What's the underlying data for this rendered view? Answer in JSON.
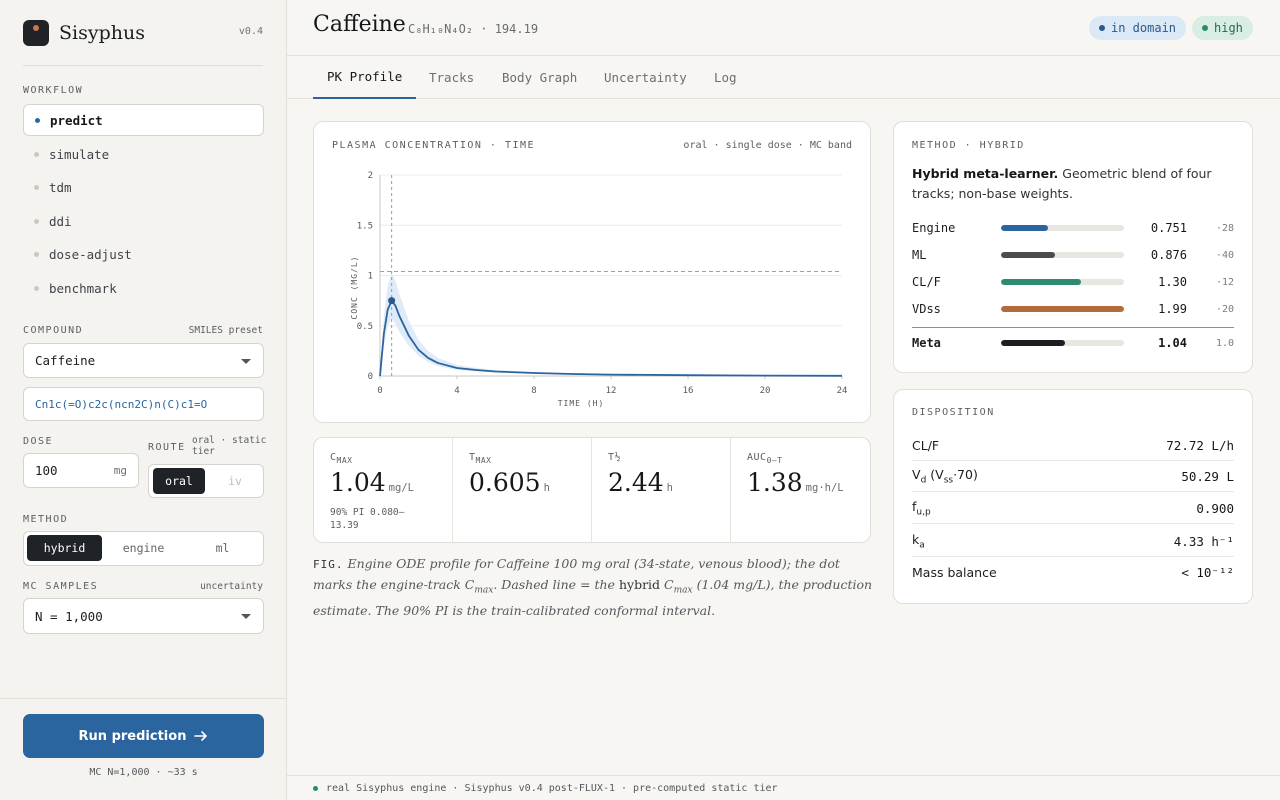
{
  "app": {
    "name": "Sisyphus",
    "version": "v0.4"
  },
  "sidebar": {
    "workflow_label": "WORKFLOW",
    "workflow_items": [
      {
        "label": "predict",
        "active": true
      },
      {
        "label": "simulate",
        "active": false
      },
      {
        "label": "tdm",
        "active": false
      },
      {
        "label": "ddi",
        "active": false
      },
      {
        "label": "dose-adjust",
        "active": false
      },
      {
        "label": "benchmark",
        "active": false
      }
    ],
    "compound_label": "COMPOUND",
    "compound_hint": "SMILES preset",
    "compound_value": "Caffeine",
    "smiles_value": "Cn1c(=O)c2c(ncn2C)n(C)c1=O",
    "dose_label": "DOSE",
    "dose_value": "100",
    "dose_unit": "mg",
    "route_label": "ROUTE",
    "route_hint_1": "oral · static",
    "route_hint_2": "tier",
    "route_options": [
      "oral",
      "iv"
    ],
    "method_label": "METHOD",
    "method_options": [
      "hybrid",
      "engine",
      "ml"
    ],
    "mc_label": "MC SAMPLES",
    "mc_hint": "uncertainty",
    "mc_value": "N = 1,000",
    "run_button": "Run prediction",
    "run_note": "MC N=1,000 · ~33 s"
  },
  "header": {
    "title": "Caffeine",
    "formula": "C₈H₁₀N₄O₂ · 194.19",
    "badge_domain": "in domain",
    "badge_confidence": "high",
    "colors": {
      "domain_bg": "#dbe9f6",
      "domain_fg": "#2a5a8a",
      "high_bg": "#d8eee4",
      "high_fg": "#1f6b4e"
    }
  },
  "tabs": [
    "PK Profile",
    "Tracks",
    "Body Graph",
    "Uncertainty",
    "Log"
  ],
  "chart_card": {
    "title": "PLASMA CONCENTRATION · TIME",
    "subtitle": "oral · single dose · MC band"
  },
  "chart_data": {
    "type": "line",
    "xlabel": "TIME (H)",
    "ylabel": "CONC (MG/L)",
    "xlim": [
      0,
      24
    ],
    "ylim": [
      0,
      2
    ],
    "x_ticks": [
      "0",
      "4",
      "8",
      "12",
      "16",
      "20",
      "24"
    ],
    "y_ticks": [
      "0",
      "0.5",
      "1",
      "1.5",
      "2"
    ],
    "series": [
      {
        "x": [
          0,
          0.2,
          0.4,
          0.605,
          0.8,
          1.0,
          1.5,
          2,
          2.5,
          3,
          4,
          5,
          6,
          8,
          10,
          12,
          16,
          20,
          24
        ],
        "y": [
          0,
          0.42,
          0.66,
          0.75,
          0.7,
          0.6,
          0.4,
          0.26,
          0.18,
          0.13,
          0.08,
          0.06,
          0.045,
          0.03,
          0.02,
          0.014,
          0.008,
          0.004,
          0.002
        ],
        "band_low": [
          0,
          0.3,
          0.5,
          0.58,
          0.52,
          0.44,
          0.3,
          0.2,
          0.14,
          0.1,
          0.06,
          0.045,
          0.035,
          0.022,
          0.015,
          0.01,
          0.006,
          0.003,
          0.001
        ],
        "band_high": [
          0,
          0.6,
          0.9,
          1.02,
          0.95,
          0.82,
          0.55,
          0.36,
          0.25,
          0.18,
          0.11,
          0.08,
          0.06,
          0.04,
          0.028,
          0.02,
          0.011,
          0.006,
          0.003
        ]
      }
    ],
    "marker": {
      "x": 0.605,
      "y": 0.75
    },
    "hybrid_cmax": 1.04,
    "grid": true,
    "colors": {
      "line": "#2a65a0",
      "band": "#dce9f7",
      "ref": "#d98a72"
    }
  },
  "metrics": [
    {
      "label": "C",
      "sub": "MAX",
      "value": "1.04",
      "unit": "mg/L",
      "pi": "90% PI 0.080–13.39"
    },
    {
      "label": "T",
      "sub": "MAX",
      "value": "0.605",
      "unit": "h",
      "pi": ""
    },
    {
      "label": "T½",
      "sub": "",
      "value": "2.44",
      "unit": "h",
      "pi": ""
    },
    {
      "label": "AUC",
      "sub": "0–T",
      "value": "1.38",
      "unit": "mg·h/L",
      "pi": ""
    }
  ],
  "caption": {
    "fig": "FIG.",
    "part1": "Engine ODE profile for Caffeine 100 mg oral (34-state, venous blood); the dot marks the engine-track C",
    "part1_sub": "max",
    "part2": ". Dashed line = the",
    "hybrid": "hybrid",
    "part3": "C",
    "part3_sub": "max",
    "part4": "(1.04 mg/L), the production estimate. The 90% PI is the train-calibrated conformal interval."
  },
  "method_card": {
    "label": "METHOD · HYBRID",
    "desc_bold": "Hybrid meta-learner.",
    "desc": "Geometric blend of four tracks; non-base weights.",
    "rows": [
      {
        "name": "Engine",
        "value": "0.751",
        "weight": "·28",
        "fraction": 0.38,
        "color": "#2a65a0"
      },
      {
        "name": "ML",
        "value": "0.876",
        "weight": "·40",
        "fraction": 0.44,
        "color": "#4a4c50"
      },
      {
        "name": "CL/F",
        "value": "1.30",
        "weight": "·12",
        "fraction": 0.65,
        "color": "#2f8a72"
      },
      {
        "name": "VDss",
        "value": "1.99",
        "weight": "·20",
        "fraction": 1.0,
        "color": "#b36a3c"
      },
      {
        "name": "Meta",
        "value": "1.04",
        "weight": "1.0",
        "fraction": 0.52,
        "color": "#1b1d21"
      }
    ]
  },
  "disposition": {
    "label": "DISPOSITION",
    "rows": [
      {
        "name": "CL/F",
        "name_sub": "",
        "name_tail": "",
        "value": "72.72 L/h"
      },
      {
        "name": "V",
        "name_sub": "d",
        "name_tail": " (V",
        "name_sub2": "ss",
        "name_tail2": "·70)",
        "value": "50.29 L"
      },
      {
        "name": "f",
        "name_sub": "u,p",
        "name_tail": "",
        "value": "0.900"
      },
      {
        "name": "k",
        "name_sub": "a",
        "name_tail": "",
        "value": "4.33 h⁻¹"
      },
      {
        "name": "Mass balance",
        "name_sub": "",
        "name_tail": "",
        "value": "< 10⁻¹²"
      }
    ]
  },
  "footer": {
    "text": "real Sisyphus engine · Sisyphus v0.4 post-FLUX-1 · pre-computed static tier"
  }
}
